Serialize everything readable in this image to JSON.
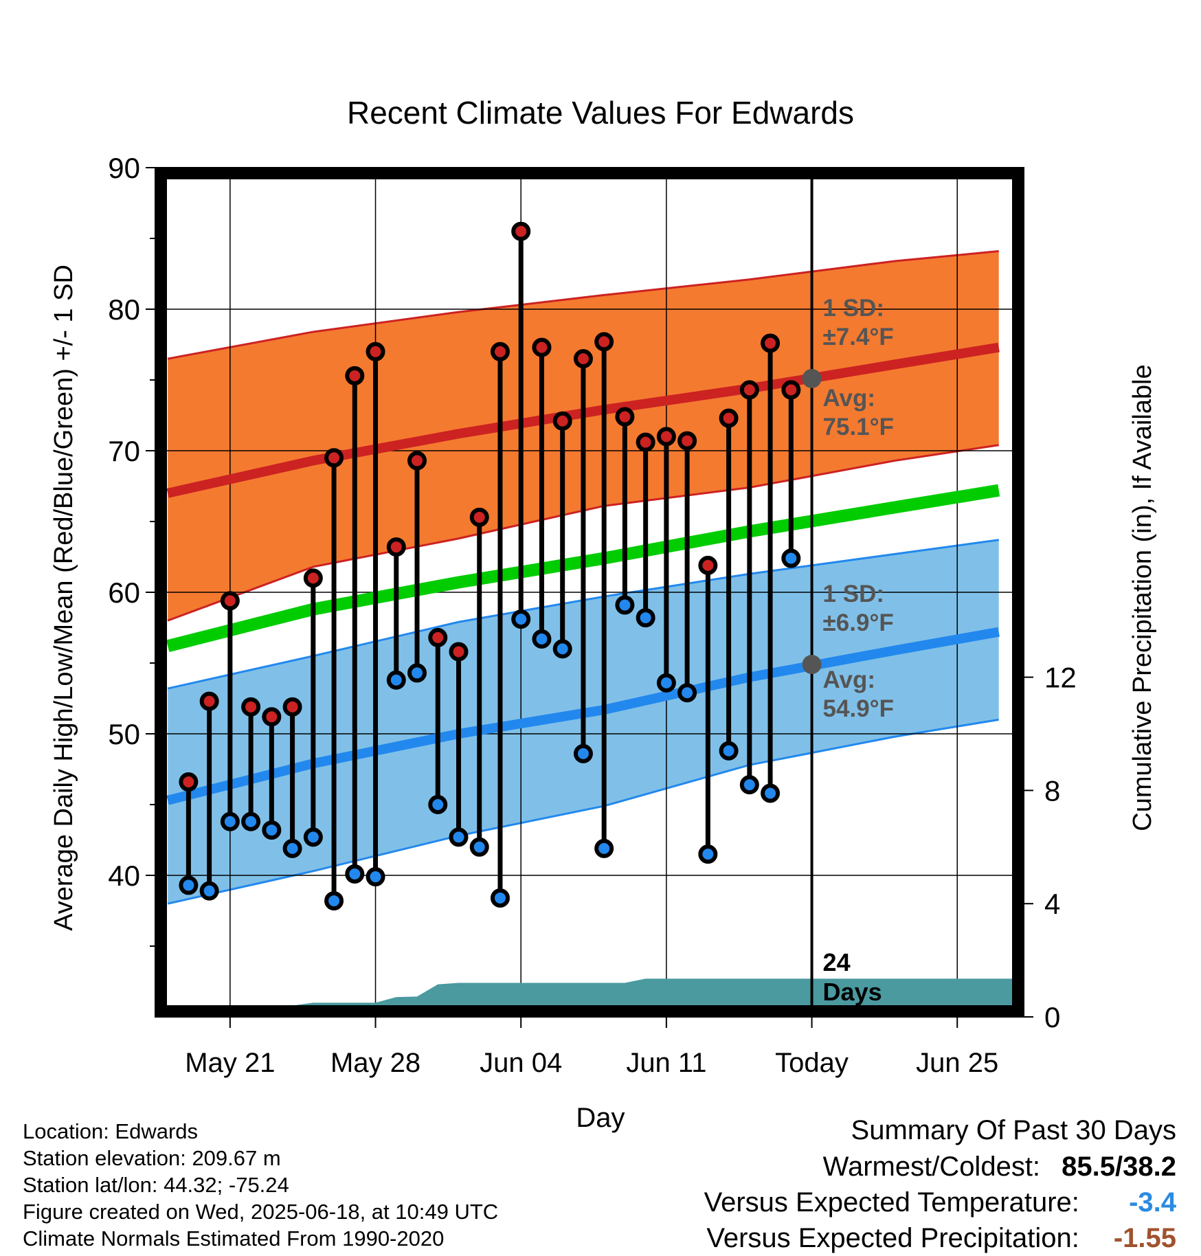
{
  "chart_data": {
    "type": "line",
    "title": "Recent Climate Values For Edwards",
    "xlabel": "Day",
    "ylabel": "Average Daily High/Low/Mean (Red/Blue/Green) +/- 1 SD",
    "ylabel2": "Cumulative Precipitation (in), If Available",
    "ylim": [
      30,
      90
    ],
    "ylim2": [
      0,
      30
    ],
    "y_ticks": [
      "90",
      "80",
      "70",
      "60",
      "50",
      "40"
    ],
    "y2_ticks": [
      "12",
      "8",
      "4",
      "0"
    ],
    "x_ticks": [
      "May 21",
      "May 28",
      "Jun 04",
      "Jun 11",
      "Today",
      "Jun 25"
    ],
    "x_days": [
      "May 19",
      "May 20",
      "May 21",
      "May 22",
      "May 23",
      "May 24",
      "May 25",
      "May 26",
      "May 27",
      "May 28",
      "May 29",
      "May 30",
      "May 31",
      "Jun 01",
      "Jun 02",
      "Jun 03",
      "Jun 04",
      "Jun 05",
      "Jun 06",
      "Jun 07",
      "Jun 08",
      "Jun 09",
      "Jun 10",
      "Jun 11",
      "Jun 12",
      "Jun 13",
      "Jun 14",
      "Jun 15",
      "Jun 16",
      "Jun 17"
    ],
    "series": [
      {
        "name": "High",
        "color": "#cc2222",
        "values": [
          46.6,
          52.3,
          59.4,
          51.9,
          51.2,
          51.9,
          61.0,
          69.5,
          75.3,
          77.0,
          63.2,
          69.3,
          56.8,
          55.8,
          65.3,
          77.0,
          85.5,
          77.3,
          72.1,
          76.5,
          77.7,
          72.4,
          70.6,
          71.0,
          70.7,
          61.9,
          72.3,
          74.3,
          77.6,
          74.3
        ]
      },
      {
        "name": "Low",
        "color": "#2288ee",
        "values": [
          39.3,
          38.9,
          43.8,
          43.8,
          43.2,
          41.9,
          42.7,
          38.2,
          40.1,
          39.9,
          53.8,
          54.3,
          45.0,
          42.7,
          42.0,
          38.4,
          58.1,
          56.7,
          56.0,
          48.6,
          41.9,
          59.1,
          58.2,
          53.6,
          52.9,
          41.5,
          48.8,
          46.4,
          45.8,
          62.4
        ]
      }
    ],
    "normals": {
      "x_days": [
        "May 18",
        "May 25",
        "Jun 01",
        "Jun 08",
        "Jun 15",
        "Jun 22",
        "Jun 27"
      ],
      "high_avg": [
        67.0,
        69.3,
        71.2,
        72.9,
        74.4,
        76.1,
        77.3
      ],
      "high_upper": [
        76.5,
        78.4,
        79.8,
        81.0,
        82.1,
        83.4,
        84.1
      ],
      "high_lower": [
        58.0,
        61.8,
        63.8,
        66.1,
        67.4,
        69.3,
        70.4
      ],
      "mean_avg": [
        56.2,
        58.8,
        60.7,
        62.4,
        64.3,
        66.0,
        67.2
      ],
      "low_avg": [
        45.3,
        47.9,
        50.0,
        51.7,
        54.0,
        55.9,
        57.2
      ],
      "low_upper": [
        53.2,
        55.5,
        57.9,
        59.7,
        61.3,
        62.7,
        63.7
      ],
      "low_lower": [
        38.0,
        40.3,
        42.8,
        44.9,
        47.8,
        49.8,
        51.0
      ]
    },
    "precipitation": {
      "x_days": [
        "May 22",
        "May 23",
        "May 24",
        "May 25",
        "May 26",
        "May 27",
        "May 28",
        "May 29",
        "May 30",
        "May 31",
        "Jun 01",
        "Jun 02",
        "Jun 03",
        "Jun 04",
        "Jun 05",
        "Jun 06",
        "Jun 07",
        "Jun 08",
        "Jun 09",
        "Jun 10",
        "Jun 11",
        "Jun 12",
        "Jun 13",
        "Jun 14",
        "Jun 15",
        "Jun 16",
        "Jun 17",
        "Jun 18",
        "Jun 27"
      ],
      "values": [
        0.0,
        0.25,
        0.4,
        0.5,
        0.5,
        0.5,
        0.5,
        0.7,
        0.72,
        1.15,
        1.2,
        1.2,
        1.2,
        1.2,
        1.2,
        1.2,
        1.2,
        1.2,
        1.2,
        1.35,
        1.35,
        1.35,
        1.35,
        1.35,
        1.35,
        1.35,
        1.35,
        1.35,
        1.35
      ]
    },
    "annotations": {
      "high_sd_label": "1 SD:",
      "high_sd_value": "±7.4°F",
      "high_avg_label": "Avg:",
      "high_avg_value": "75.1°F",
      "low_sd_label": "1 SD:",
      "low_sd_value": "±6.9°F",
      "low_avg_label": "Avg:",
      "low_avg_value": "54.9°F",
      "precip_days_count": "24",
      "precip_days_label": "Days",
      "today_high_avg": 75.1,
      "today_low_avg": 54.9
    },
    "colors": {
      "high_band": "#f47a30",
      "high_line": "#cc2222",
      "low_band": "#80c0e8",
      "low_line": "#2288ee",
      "mean_line": "#00cc00",
      "precip": "#4a9aa0",
      "annotation": "#555555"
    },
    "grid": true
  },
  "info": {
    "location": "Location: Edwards",
    "elevation": "Station elevation: 209.67 m",
    "latlon": "Station lat/lon: 44.32; -75.24",
    "created": "Figure created on Wed, 2025-06-18, at 10:49 UTC",
    "normals": "Climate Normals Estimated From 1990-2020"
  },
  "summary": {
    "heading": "Summary Of Past 30 Days",
    "warmest_label": "Warmest/Coldest:",
    "warmest_value": "85.5/38.2",
    "temp_label": "Versus Expected Temperature:",
    "temp_value": "-3.4",
    "temp_color": "#2b8be0",
    "precip_label": "Versus Expected Precipitation:",
    "precip_value": "-1.55",
    "precip_color": "#a0522d"
  }
}
